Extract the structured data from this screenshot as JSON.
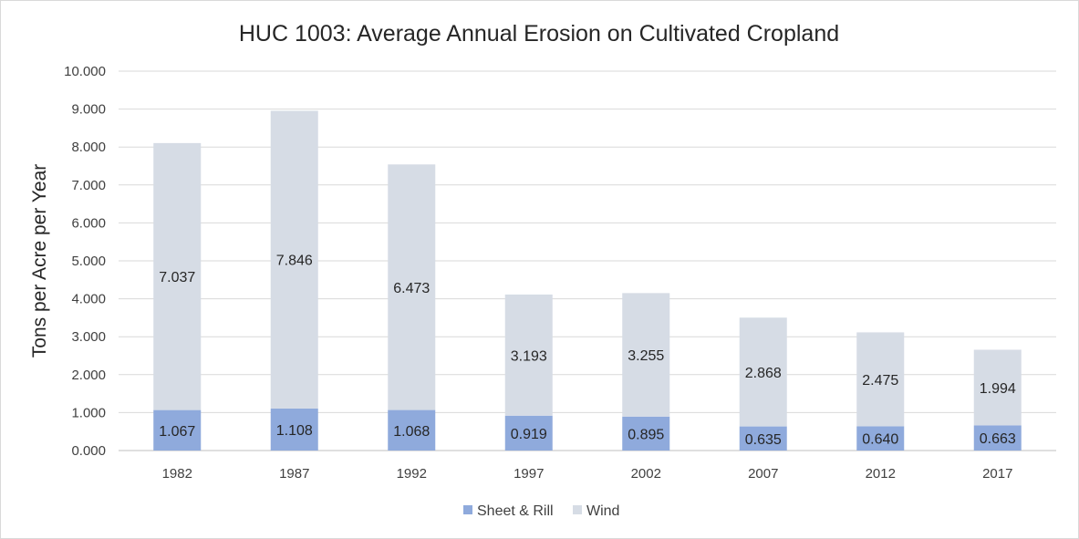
{
  "chart_data": {
    "type": "bar",
    "stacked": true,
    "title": "HUC 1003: Average Annual Erosion on Cultivated Cropland",
    "xlabel": "",
    "ylabel": "Tons per Acre per Year",
    "categories": [
      "1982",
      "1987",
      "1992",
      "1997",
      "2002",
      "2007",
      "2012",
      "2017"
    ],
    "series": [
      {
        "name": "Sheet & Rill",
        "color": "#8faadc",
        "values": [
          1.067,
          1.108,
          1.068,
          0.919,
          0.895,
          0.635,
          0.64,
          0.663
        ]
      },
      {
        "name": "Wind",
        "color": "#d6dce5",
        "values": [
          7.037,
          7.846,
          6.473,
          3.193,
          3.255,
          2.868,
          2.475,
          1.994
        ]
      }
    ],
    "ylim": [
      0,
      10
    ],
    "yticks": [
      0,
      1,
      2,
      3,
      4,
      5,
      6,
      7,
      8,
      9,
      10
    ],
    "ytick_labels": [
      "0.000",
      "1.000",
      "2.000",
      "3.000",
      "4.000",
      "5.000",
      "6.000",
      "7.000",
      "8.000",
      "9.000",
      "10.000"
    ],
    "grid": true,
    "legend_position": "bottom"
  }
}
